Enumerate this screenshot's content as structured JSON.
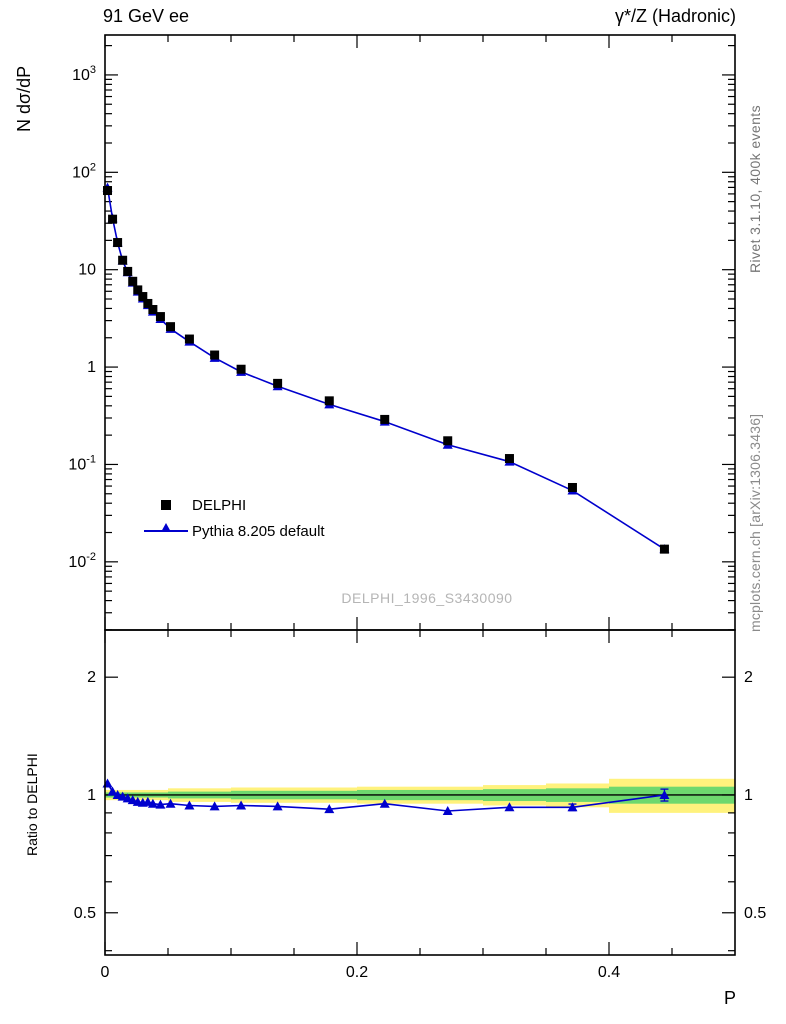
{
  "header": {
    "left": "91 GeV ee",
    "right": "γ*/Z (Hadronic)"
  },
  "right_margin": {
    "top_note": "Rivet 3.1.10, 400k events",
    "bottom_note": "mcplots.cern.ch [arXiv:1306.3436]"
  },
  "watermark": "DELPHI_1996_S3430090",
  "main_plot": {
    "ylabel": "N dσ/dP",
    "legend": [
      {
        "label": "DELPHI",
        "marker": "black-filled-square"
      },
      {
        "label": "Pythia 8.205 default",
        "marker": "blue-triangle-on-line"
      }
    ]
  },
  "ratio_plot": {
    "ylabel": "Ratio to DELPHI"
  },
  "xaxis": {
    "label": "P"
  },
  "colors": {
    "pythia_line": "#0000cd",
    "delphi_marker": "#000000",
    "band_yellow": "#fff27d",
    "band_green": "#6ed86e",
    "watermark_gray": "#b5b5b5"
  },
  "chart_data": {
    "type": "line",
    "title": "91 GeV ee — γ*/Z (Hadronic)",
    "xlabel": "P",
    "ylabel": "N dσ/dP",
    "ratio_ylabel": "Ratio to DELPHI",
    "xrange": [
      0,
      0.5
    ],
    "main_ylog_range": [
      -2.7,
      3.41
    ],
    "ratio_yrange": [
      0.39,
      2.64
    ],
    "grid": false,
    "legend_position": "inside-left-bottom",
    "x": [
      0.002,
      0.006,
      0.01,
      0.014,
      0.018,
      0.022,
      0.026,
      0.03,
      0.034,
      0.038,
      0.044,
      0.052,
      0.067,
      0.087,
      0.108,
      0.137,
      0.178,
      0.222,
      0.272,
      0.321,
      0.371,
      0.444
    ],
    "series": [
      {
        "name": "DELPHI",
        "values": [
          65,
          33,
          19,
          12.5,
          9.6,
          7.6,
          6.2,
          5.3,
          4.5,
          3.9,
          3.3,
          2.6,
          1.94,
          1.33,
          0.95,
          0.68,
          0.45,
          0.29,
          0.175,
          0.115,
          0.058,
          0.0135
        ]
      },
      {
        "name": "Pythia 8.205 default",
        "ratio_to_delphi": [
          1.07,
          1.02,
          1.0,
          0.99,
          0.98,
          0.97,
          0.96,
          0.955,
          0.96,
          0.95,
          0.945,
          0.95,
          0.94,
          0.935,
          0.94,
          0.935,
          0.92,
          0.95,
          0.91,
          0.93,
          0.93,
          1.0
        ],
        "ratio_err": [
          0.012,
          0.008,
          0.006,
          0.005,
          0.005,
          0.005,
          0.005,
          0.005,
          0.005,
          0.005,
          0.005,
          0.005,
          0.005,
          0.005,
          0.005,
          0.006,
          0.006,
          0.007,
          0.008,
          0.01,
          0.018,
          0.035
        ]
      }
    ],
    "main_yticks": [
      {
        "v": 1000,
        "base": "10",
        "exp": "3"
      },
      {
        "v": 100,
        "base": "10",
        "exp": "2"
      },
      {
        "v": 10,
        "base": "10",
        "exp": ""
      },
      {
        "v": 1,
        "base": "1",
        "exp": ""
      },
      {
        "v": 0.1,
        "base": "10",
        "exp": "-1"
      },
      {
        "v": 0.01,
        "base": "10",
        "exp": "-2"
      }
    ],
    "ratio_yticks_major": [
      {
        "v": 0.5,
        "label": "0.5"
      },
      {
        "v": 1,
        "label": "1"
      },
      {
        "v": 2,
        "label": "2"
      }
    ],
    "ratio_yticks_minor": [
      0.4,
      0.6,
      0.7,
      0.8,
      0.9
    ],
    "xticks_major": [
      {
        "v": 0,
        "label": "0"
      },
      {
        "v": 0.2,
        "label": "0.2"
      },
      {
        "v": 0.4,
        "label": "0.4"
      }
    ],
    "xticks_minor": [
      0.05,
      0.1,
      0.15,
      0.25,
      0.3,
      0.35,
      0.45
    ],
    "bands": [
      {
        "x0": 0.0,
        "x1": 0.05,
        "yellow": [
          0.97,
          1.03
        ],
        "green": [
          0.985,
          1.015
        ]
      },
      {
        "x0": 0.05,
        "x1": 0.1,
        "yellow": [
          0.96,
          1.04
        ],
        "green": [
          0.98,
          1.02
        ]
      },
      {
        "x0": 0.1,
        "x1": 0.2,
        "yellow": [
          0.955,
          1.045
        ],
        "green": [
          0.975,
          1.025
        ]
      },
      {
        "x0": 0.2,
        "x1": 0.3,
        "yellow": [
          0.95,
          1.05
        ],
        "green": [
          0.97,
          1.03
        ]
      },
      {
        "x0": 0.3,
        "x1": 0.35,
        "yellow": [
          0.94,
          1.06
        ],
        "green": [
          0.965,
          1.035
        ]
      },
      {
        "x0": 0.35,
        "x1": 0.4,
        "yellow": [
          0.93,
          1.07
        ],
        "green": [
          0.96,
          1.04
        ]
      },
      {
        "x0": 0.4,
        "x1": 0.5,
        "yellow": [
          0.9,
          1.1
        ],
        "green": [
          0.95,
          1.05
        ]
      }
    ]
  }
}
